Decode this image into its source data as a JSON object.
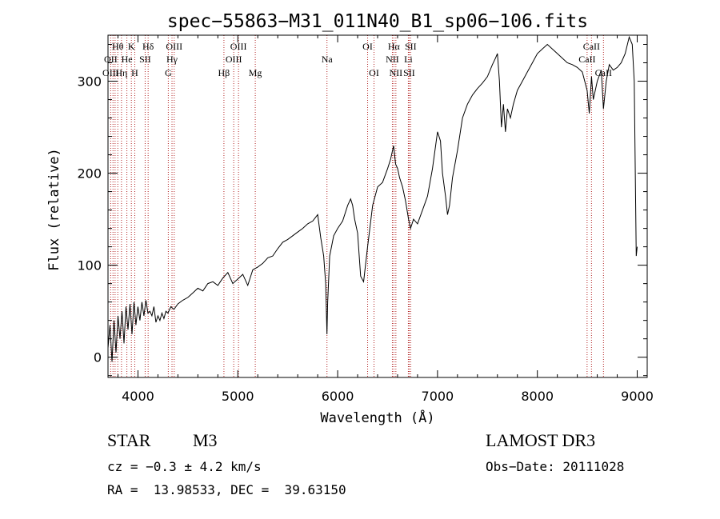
{
  "chart_data": {
    "type": "line",
    "title": "spec−55863−M31_011N40_B1_sp06−106.fits",
    "xlabel": "Wavelength (Å)",
    "ylabel": "Flux (relative)",
    "xlim": [
      3700,
      9100
    ],
    "ylim": [
      -22,
      350
    ],
    "xticks": [
      4000,
      5000,
      6000,
      7000,
      8000,
      9000
    ],
    "yticks": [
      0,
      100,
      200,
      300
    ],
    "xtick_labels": [
      "4000",
      "5000",
      "6000",
      "7000",
      "8000",
      "9000"
    ],
    "ytick_labels": [
      "0",
      "100",
      "200",
      "300"
    ],
    "grid": false,
    "series": [
      {
        "name": "flux",
        "x": [
          3700,
          3720,
          3740,
          3760,
          3780,
          3800,
          3820,
          3840,
          3860,
          3880,
          3900,
          3920,
          3940,
          3960,
          3980,
          4000,
          4020,
          4040,
          4060,
          4080,
          4100,
          4120,
          4140,
          4160,
          4180,
          4200,
          4220,
          4240,
          4260,
          4280,
          4300,
          4330,
          4360,
          4400,
          4450,
          4500,
          4550,
          4600,
          4650,
          4700,
          4750,
          4800,
          4850,
          4900,
          4950,
          5000,
          5050,
          5100,
          5150,
          5200,
          5250,
          5300,
          5350,
          5400,
          5450,
          5500,
          5550,
          5600,
          5650,
          5700,
          5750,
          5800,
          5830,
          5860,
          5880,
          5893,
          5900,
          5920,
          5960,
          6000,
          6050,
          6100,
          6130,
          6150,
          6170,
          6200,
          6230,
          6260,
          6300,
          6350,
          6400,
          6450,
          6500,
          6530,
          6560,
          6580,
          6600,
          6620,
          6650,
          6680,
          6710,
          6730,
          6760,
          6800,
          6850,
          6900,
          6950,
          7000,
          7030,
          7050,
          7080,
          7100,
          7120,
          7150,
          7200,
          7250,
          7300,
          7350,
          7400,
          7450,
          7500,
          7550,
          7580,
          7600,
          7620,
          7640,
          7660,
          7680,
          7700,
          7730,
          7760,
          7800,
          7850,
          7900,
          7950,
          8000,
          8050,
          8100,
          8150,
          8200,
          8250,
          8300,
          8350,
          8400,
          8450,
          8498,
          8520,
          8542,
          8560,
          8600,
          8640,
          8662,
          8690,
          8720,
          8760,
          8800,
          8840,
          8880,
          8920,
          8950,
          8970,
          8990,
          9000
        ],
        "values": [
          10,
          35,
          -5,
          40,
          5,
          45,
          20,
          50,
          15,
          55,
          30,
          58,
          25,
          60,
          35,
          55,
          40,
          60,
          45,
          62,
          48,
          50,
          45,
          55,
          38,
          45,
          40,
          48,
          42,
          50,
          48,
          55,
          52,
          58,
          62,
          65,
          70,
          75,
          72,
          80,
          82,
          78,
          86,
          92,
          80,
          85,
          90,
          78,
          95,
          98,
          102,
          108,
          110,
          118,
          125,
          128,
          132,
          136,
          140,
          145,
          148,
          155,
          130,
          110,
          80,
          25,
          60,
          110,
          132,
          140,
          148,
          165,
          172,
          165,
          150,
          135,
          88,
          82,
          120,
          165,
          185,
          190,
          205,
          215,
          230,
          210,
          205,
          195,
          185,
          170,
          150,
          140,
          150,
          145,
          160,
          175,
          205,
          245,
          235,
          200,
          175,
          155,
          165,
          195,
          225,
          260,
          275,
          285,
          292,
          298,
          305,
          318,
          325,
          330,
          300,
          250,
          275,
          245,
          270,
          260,
          275,
          290,
          300,
          310,
          320,
          330,
          335,
          340,
          335,
          330,
          325,
          320,
          318,
          315,
          310,
          290,
          265,
          305,
          280,
          300,
          312,
          270,
          300,
          318,
          312,
          315,
          320,
          330,
          348,
          340,
          300,
          110,
          120
        ]
      }
    ],
    "annotations": [
      {
        "label": "Hθ",
        "x": 3798,
        "row": 1
      },
      {
        "label": "K",
        "x": 3934,
        "row": 1
      },
      {
        "label": "Hδ",
        "x": 4102,
        "row": 1
      },
      {
        "label": "OIII",
        "x": 4363,
        "row": 1
      },
      {
        "label": "OIII",
        "x": 5007,
        "row": 1
      },
      {
        "label": "OI",
        "x": 6300,
        "row": 1
      },
      {
        "label": "Hα",
        "x": 6563,
        "row": 1
      },
      {
        "label": "SII",
        "x": 6731,
        "row": 1
      },
      {
        "label": "CaII",
        "x": 8542,
        "row": 1
      },
      {
        "label": "OII",
        "x": 3727,
        "row": 2
      },
      {
        "label": "He",
        "x": 3889,
        "row": 2
      },
      {
        "label": "SII",
        "x": 4072,
        "row": 2
      },
      {
        "label": "Hγ",
        "x": 4341,
        "row": 2
      },
      {
        "label": "OIII",
        "x": 4959,
        "row": 2
      },
      {
        "label": "Na",
        "x": 5893,
        "row": 2
      },
      {
        "label": "NII",
        "x": 6548,
        "row": 2
      },
      {
        "label": "Li",
        "x": 6708,
        "row": 2
      },
      {
        "label": "CaII",
        "x": 8498,
        "row": 2
      },
      {
        "label": "OIII",
        "x": 3727,
        "row": 3
      },
      {
        "label": "Hη",
        "x": 3835,
        "row": 3
      },
      {
        "label": "H",
        "x": 3968,
        "row": 3
      },
      {
        "label": "G",
        "x": 4304,
        "row": 3
      },
      {
        "label": "Hβ",
        "x": 4861,
        "row": 3
      },
      {
        "label": "Mg",
        "x": 5175,
        "row": 3
      },
      {
        "label": "OI",
        "x": 6364,
        "row": 3
      },
      {
        "label": "NII",
        "x": 6583,
        "row": 3
      },
      {
        "label": "SII",
        "x": 6716,
        "row": 3
      },
      {
        "label": "CaII",
        "x": 8662,
        "row": 3
      }
    ],
    "line_markers": [
      3727,
      3750,
      3771,
      3798,
      3835,
      3889,
      3934,
      3968,
      4072,
      4102,
      4304,
      4341,
      4363,
      4861,
      4959,
      5007,
      5175,
      5893,
      6300,
      6364,
      6548,
      6563,
      6583,
      6708,
      6716,
      6731,
      8498,
      8542,
      8662
    ],
    "line_color": "#000000",
    "marker_color": "#b22222"
  },
  "info": {
    "class": "STAR",
    "subclass": "M3",
    "survey": "LAMOST DR3",
    "cz": "cz = −0.3 ± 4.2 km/s",
    "obs_date": "Obs−Date: 20111028",
    "radec": "RA =  13.98533, DEC =  39.63150"
  }
}
